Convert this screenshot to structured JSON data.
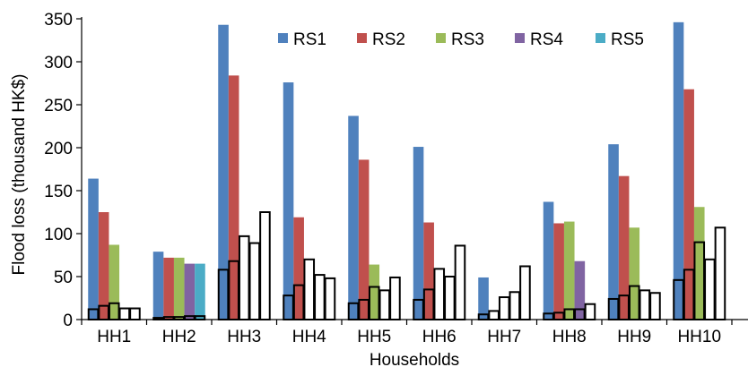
{
  "chart_data": {
    "type": "bar",
    "xlabel": "Households",
    "ylabel": "Flood loss (thousand HK$)",
    "ylim": [
      0,
      350
    ],
    "yticks": [
      0,
      50,
      100,
      150,
      200,
      250,
      300,
      350
    ],
    "grid": false,
    "legend": "top-center",
    "categories": [
      "HH1",
      "HH2",
      "HH3",
      "HH4",
      "HH5",
      "HH6",
      "HH7",
      "HH8",
      "HH9",
      "HH10"
    ],
    "series": [
      {
        "name": "RS1",
        "color": "#4f81bd",
        "values": [
          164,
          79,
          343,
          276,
          237,
          201,
          49,
          137,
          204,
          346
        ]
      },
      {
        "name": "RS2",
        "color": "#c0504d",
        "values": [
          125,
          72,
          284,
          119,
          186,
          113,
          0,
          112,
          167,
          268
        ]
      },
      {
        "name": "RS3",
        "color": "#9bbb59",
        "values": [
          87,
          72,
          0,
          0,
          64,
          0,
          0,
          114,
          107,
          131
        ]
      },
      {
        "name": "RS4",
        "color": "#8064a2",
        "values": [
          0,
          65,
          0,
          0,
          0,
          0,
          0,
          68,
          0,
          0
        ]
      },
      {
        "name": "RS5",
        "color": "#4bacc6",
        "values": [
          0,
          65,
          0,
          0,
          0,
          0,
          0,
          0,
          0,
          0
        ]
      }
    ],
    "overlay_series": [
      {
        "name": "RS1",
        "values": [
          12,
          2,
          58,
          28,
          19,
          23,
          6,
          7,
          24,
          46
        ]
      },
      {
        "name": "RS2",
        "values": [
          16,
          3,
          68,
          40,
          23,
          35,
          10,
          8,
          28,
          58
        ]
      },
      {
        "name": "RS3",
        "values": [
          19,
          3,
          97,
          70,
          38,
          59,
          26,
          12,
          39,
          90
        ]
      },
      {
        "name": "RS4",
        "values": [
          13,
          4,
          89,
          52,
          34,
          50,
          32,
          12,
          34,
          70
        ]
      },
      {
        "name": "RS5",
        "values": [
          13,
          4,
          125,
          48,
          49,
          86,
          62,
          18,
          31,
          107
        ]
      }
    ]
  }
}
